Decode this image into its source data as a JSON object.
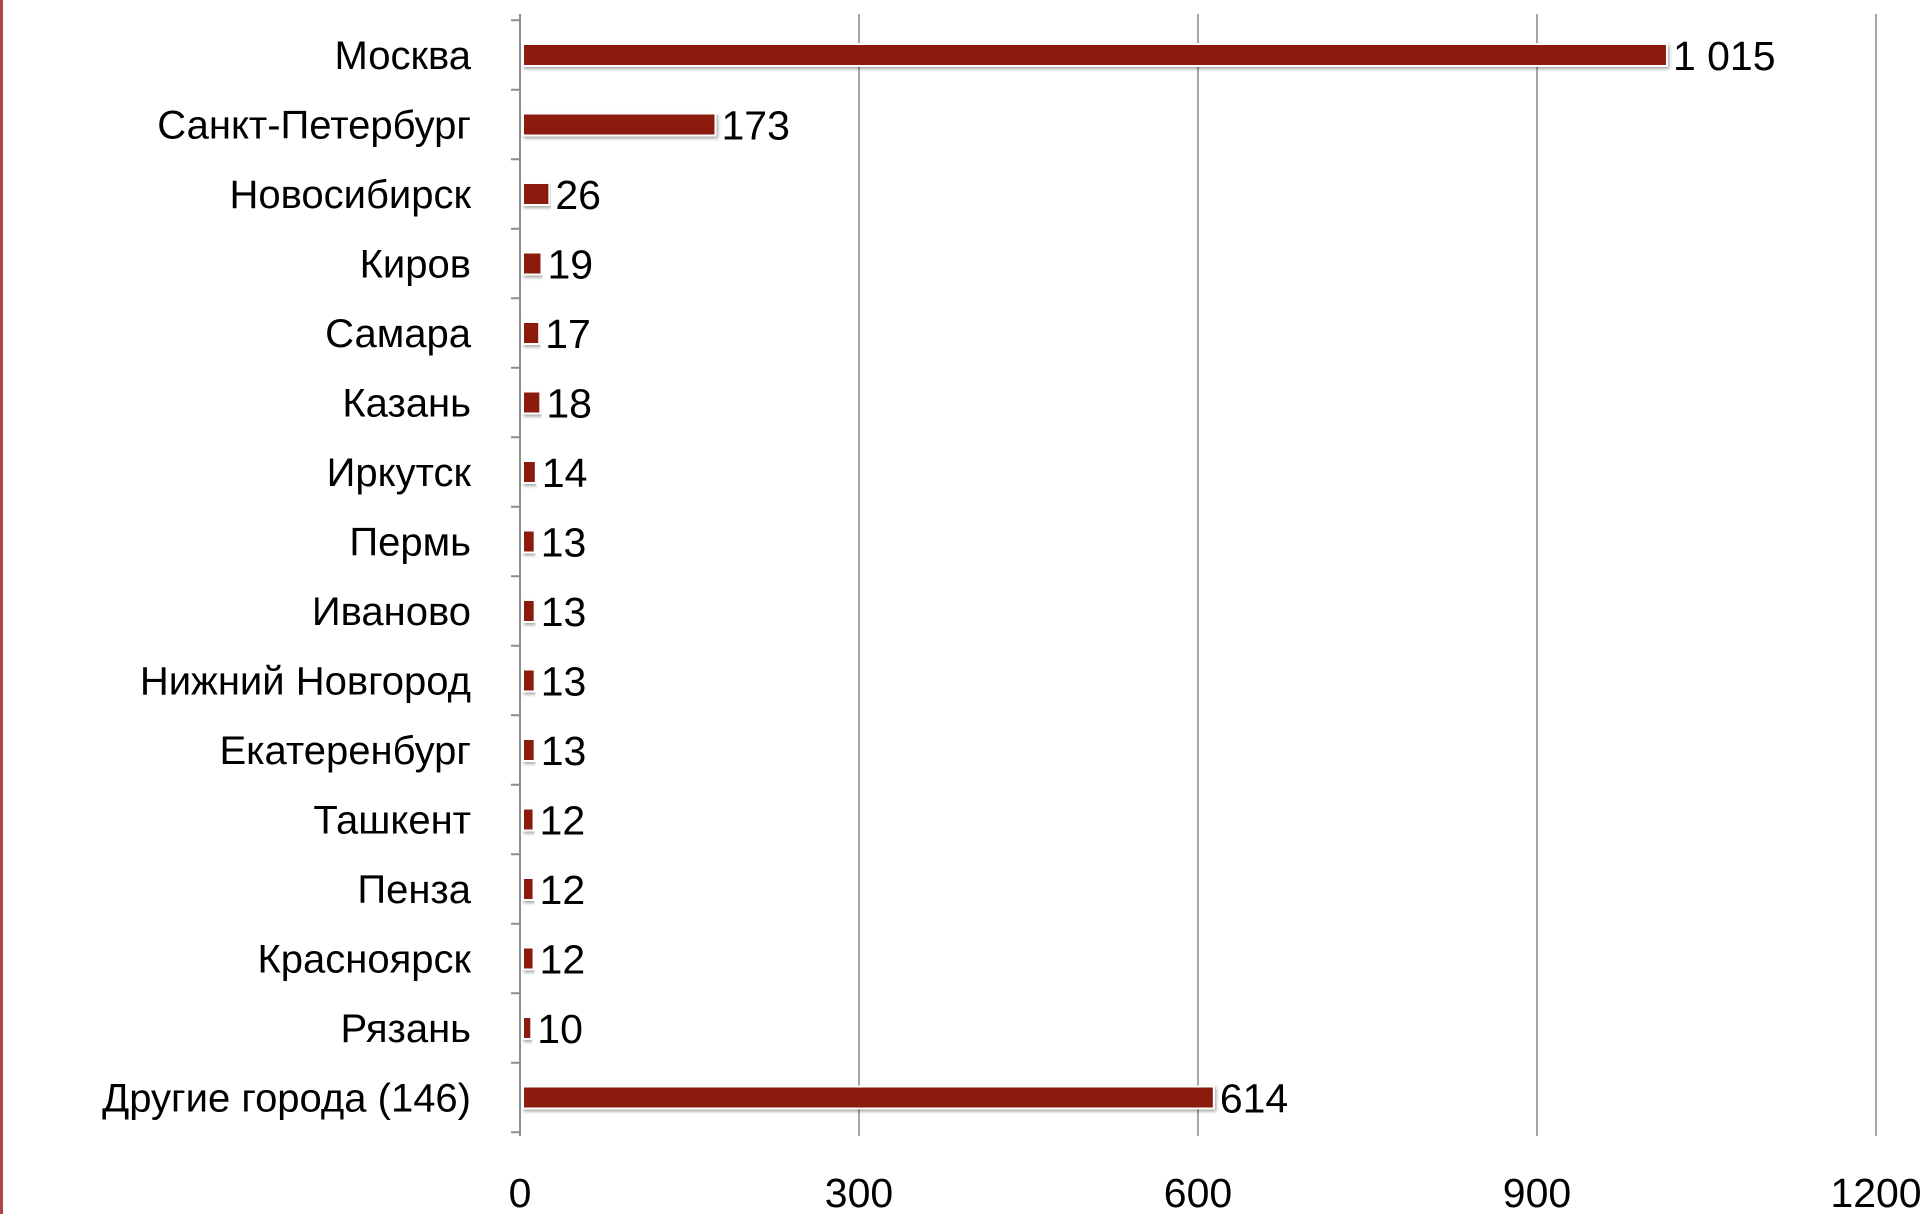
{
  "chart_data": {
    "type": "bar",
    "orientation": "horizontal",
    "categories": [
      "Москва",
      "Санкт-Петербург",
      "Новосибирск",
      "Киров",
      "Самара",
      "Казань",
      "Иркутск",
      "Пермь",
      "Иваново",
      "Нижний Новгород",
      "Екатеренбург",
      "Ташкент",
      "Пенза",
      "Красноярск",
      "Рязань",
      "Другие города (146)"
    ],
    "values": [
      1015,
      173,
      26,
      19,
      17,
      18,
      14,
      13,
      13,
      13,
      13,
      12,
      12,
      12,
      10,
      614
    ],
    "value_labels": [
      "1 015",
      "173",
      "26",
      "19",
      "17",
      "18",
      "14",
      "13",
      "13",
      "13",
      "13",
      "12",
      "12",
      "12",
      "10",
      "614"
    ],
    "xlim": [
      0,
      1200
    ],
    "xticks": [
      0,
      300,
      600,
      900,
      1200
    ],
    "xtick_labels": [
      "0",
      "300",
      "600",
      "900",
      "1200"
    ],
    "grid": "vertical",
    "legend": "none",
    "bar_color": "#8b1a10"
  }
}
